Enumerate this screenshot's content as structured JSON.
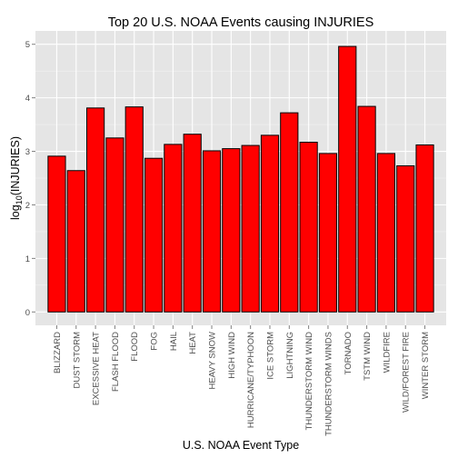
{
  "chart_data": {
    "type": "bar",
    "title": "Top 20 U.S. NOAA Events causing INJURIES",
    "xlabel": "U.S. NOAA Event Type",
    "ylabel_main": "log",
    "ylabel_sub": "10",
    "ylabel_rest": "(INJURIES)",
    "ylim": [
      -0.25,
      5.25
    ],
    "yticks": [
      0,
      1,
      2,
      3,
      4,
      5
    ],
    "grid": true,
    "categories": [
      "BLIZZARD",
      "DUST STORM",
      "EXCESSIVE HEAT",
      "FLASH FLOOD",
      "FLOOD",
      "FOG",
      "HAIL",
      "HEAT",
      "HEAVY SNOW",
      "HIGH WIND",
      "HURRICANE/TYPHOON",
      "ICE STORM",
      "LIGHTNING",
      "THUNDERSTORM WIND",
      "THUNDERSTORM WINDS",
      "TORNADO",
      "TSTM WIND",
      "WILDFIRE",
      "WILD/FOREST FIRE",
      "WINTER STORM"
    ],
    "values": [
      2.91,
      2.64,
      3.81,
      3.25,
      3.83,
      2.87,
      3.13,
      3.32,
      3.01,
      3.05,
      3.11,
      3.3,
      3.72,
      3.17,
      2.96,
      4.96,
      3.84,
      2.96,
      2.73,
      3.12
    ],
    "bar_color": "#ff0000",
    "bar_stroke": "#000000",
    "panel_bg": "#e5e5e5",
    "grid_color": "#ffffff"
  }
}
